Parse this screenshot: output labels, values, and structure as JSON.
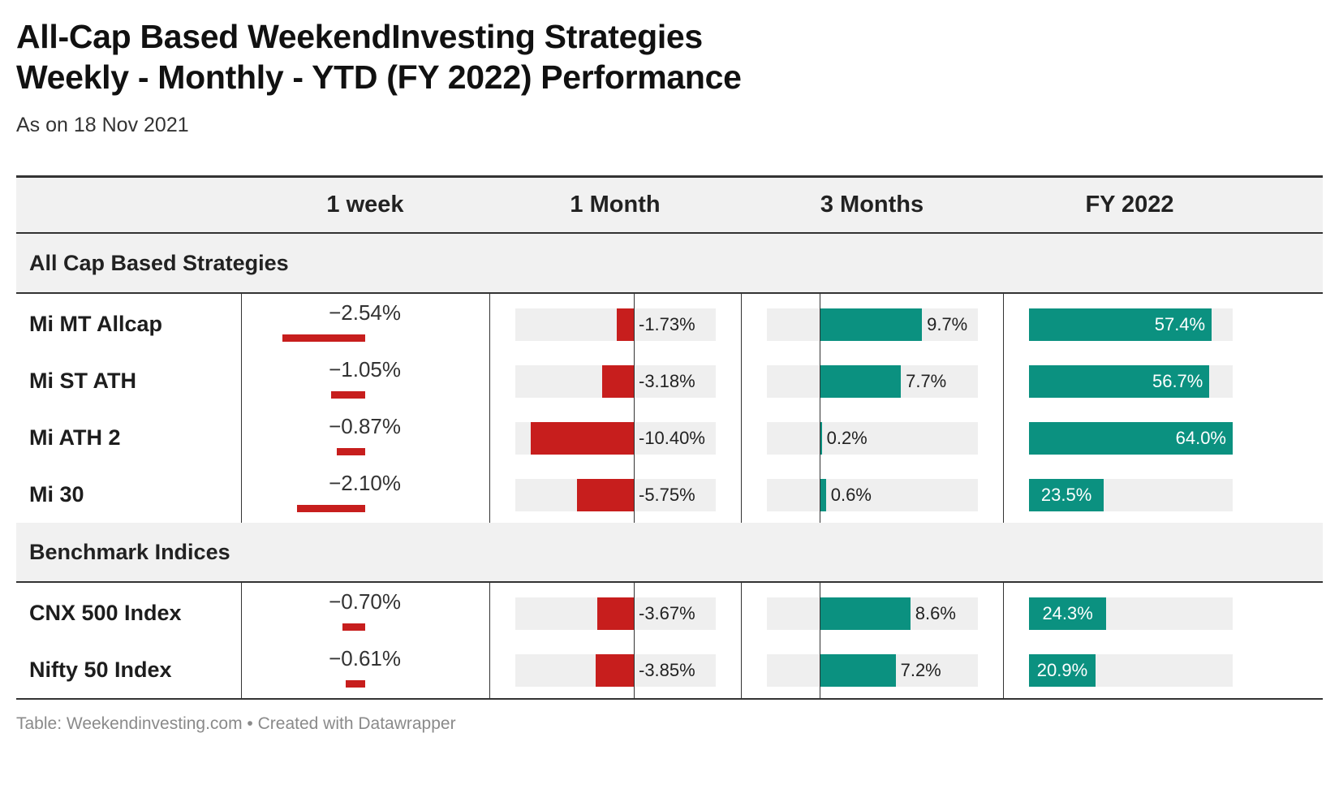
{
  "title_line1": "All-Cap Based WeekendInvesting Strategies",
  "title_line2": "Weekly - Monthly - YTD (FY 2022)  Performance",
  "subtitle": "As on 18 Nov 2021",
  "footer": "Table: Weekendinvesting.com • Created with Datawrapper",
  "colors": {
    "negative": "#c71e1d",
    "positive": "#0b9180",
    "track": "#efefef",
    "header_bg": "#f1f1f1"
  },
  "chart_data": {
    "type": "table",
    "columns": [
      "1 week",
      "1 Month",
      "3 Months",
      "FY 2022"
    ],
    "groups": [
      {
        "label": "All Cap Based Strategies",
        "rows": [
          {
            "name": "Mi MT Allcap",
            "week": -2.54,
            "week_label": "−2.54%",
            "month": -1.73,
            "month_label": "-1.73%",
            "three_months": 9.7,
            "three_months_label": "9.7%",
            "fy": 57.4,
            "fy_label": "57.4%"
          },
          {
            "name": "Mi ST ATH",
            "week": -1.05,
            "week_label": "−1.05%",
            "month": -3.18,
            "month_label": "-3.18%",
            "three_months": 7.7,
            "three_months_label": "7.7%",
            "fy": 56.7,
            "fy_label": "56.7%"
          },
          {
            "name": "Mi ATH 2",
            "week": -0.87,
            "week_label": "−0.87%",
            "month": -10.4,
            "month_label": "-10.40%",
            "three_months": 0.2,
            "three_months_label": "0.2%",
            "fy": 64.0,
            "fy_label": "64.0%"
          },
          {
            "name": "Mi 30",
            "week": -2.1,
            "week_label": "−2.10%",
            "month": -5.75,
            "month_label": "-5.75%",
            "three_months": 0.6,
            "three_months_label": "0.6%",
            "fy": 23.5,
            "fy_label": "23.5%"
          }
        ]
      },
      {
        "label": "Benchmark Indices",
        "rows": [
          {
            "name": "CNX 500 Index",
            "week": -0.7,
            "week_label": "−0.70%",
            "month": -3.67,
            "month_label": "-3.67%",
            "three_months": 8.6,
            "three_months_label": "8.6%",
            "fy": 24.3,
            "fy_label": "24.3%"
          },
          {
            "name": "Nifty 50 Index",
            "week": -0.61,
            "week_label": "−0.61%",
            "month": -3.85,
            "month_label": "-3.85%",
            "three_months": 7.2,
            "three_months_label": "7.2%",
            "fy": 20.9,
            "fy_label": "20.9%"
          }
        ]
      }
    ],
    "scales": {
      "week": [
        -3,
        0
      ],
      "month": [
        -12,
        8.3
      ],
      "three_months": [
        -5,
        15
      ],
      "fy": [
        0,
        64
      ]
    }
  }
}
